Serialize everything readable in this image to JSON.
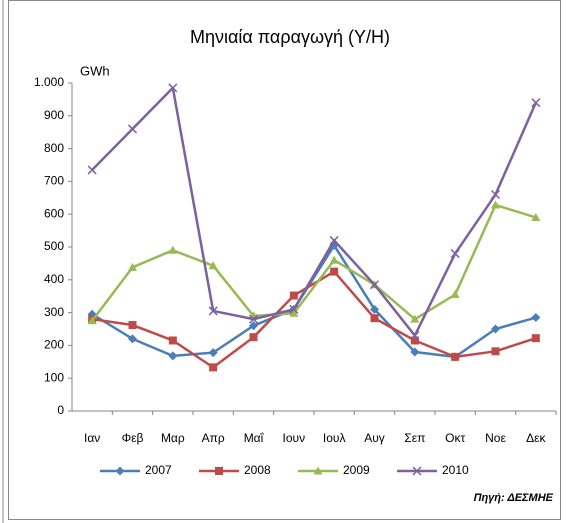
{
  "chart_data": {
    "type": "line",
    "title": "Μηνιαία παραγωγή (Υ/Η)",
    "y_unit": "GWh",
    "source": "Πηγή: ΔΕΣΜΗΕ",
    "categories": [
      "Ιαν",
      "Φεβ",
      "Μαρ",
      "Απρ",
      "Μαΐ",
      "Ιουν",
      "Ιουλ",
      "Αυγ",
      "Σεπ",
      "Οκτ",
      "Νοε",
      "Δεκ"
    ],
    "series": [
      {
        "name": "2007",
        "color": "#4a7ebb",
        "marker": "diamond",
        "values": [
          295,
          220,
          168,
          178,
          260,
          310,
          505,
          310,
          180,
          165,
          250,
          285
        ]
      },
      {
        "name": "2008",
        "color": "#be4b48",
        "marker": "square",
        "values": [
          280,
          262,
          215,
          133,
          225,
          352,
          425,
          283,
          215,
          165,
          182,
          222
        ]
      },
      {
        "name": "2009",
        "color": "#98b954",
        "marker": "triangle",
        "values": [
          275,
          438,
          490,
          443,
          290,
          298,
          460,
          385,
          280,
          355,
          628,
          590
        ]
      },
      {
        "name": "2010",
        "color": "#7d60a0",
        "marker": "x",
        "values": [
          735,
          860,
          985,
          305,
          280,
          310,
          520,
          385,
          230,
          480,
          660,
          940
        ]
      }
    ],
    "ylim": [
      0,
      1000
    ],
    "yticks": [
      0,
      100,
      200,
      300,
      400,
      500,
      600,
      700,
      800,
      900,
      {
        "value": 1000,
        "label": "1.000"
      }
    ],
    "grid": false
  }
}
